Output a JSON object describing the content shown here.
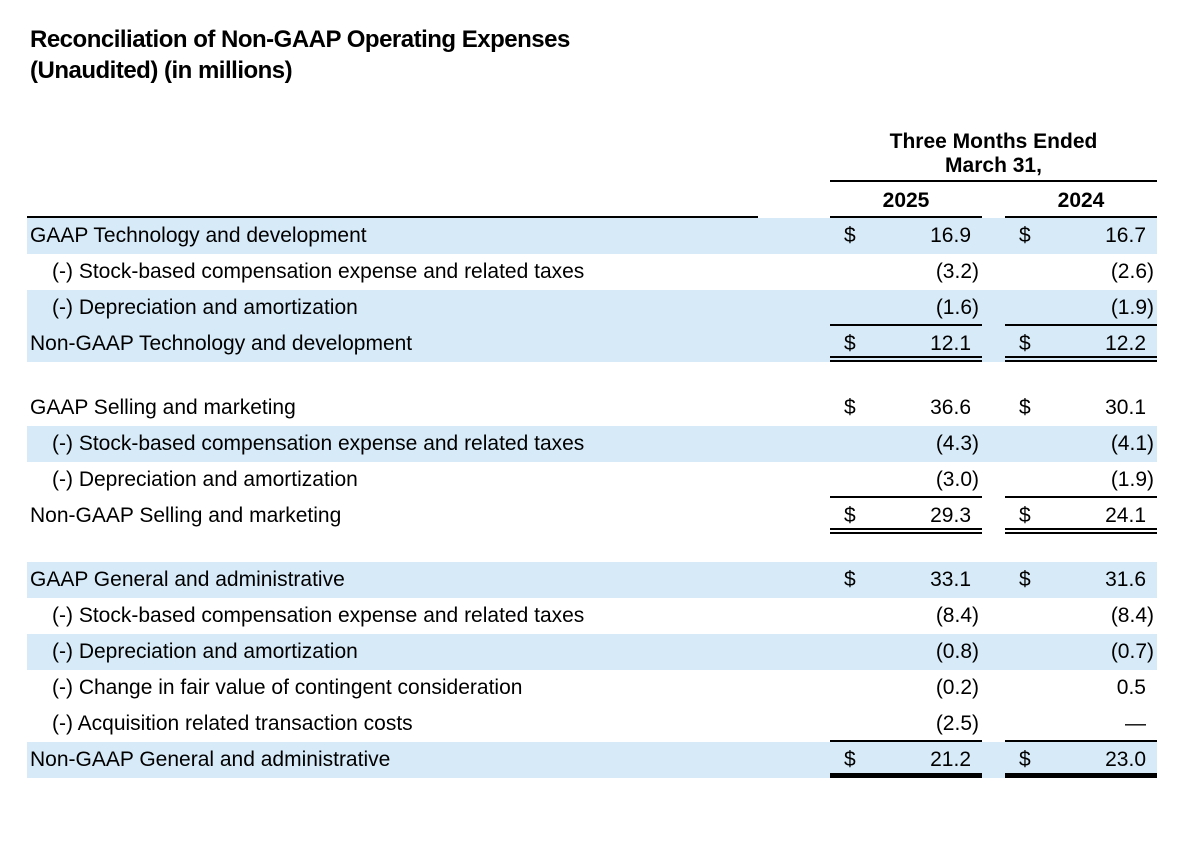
{
  "page": {
    "title_line1": "Reconciliation of Non-GAAP Operating Expenses",
    "title_line2": "(Unaudited) (in millions)"
  },
  "table": {
    "period_line1": "Three Months Ended",
    "period_line2": "March 31,",
    "col_2025": "2025",
    "col_2024": "2024",
    "currency_symbol": "$",
    "highlight_color": "#d7eaf8",
    "rule_color": "#000000",
    "sections": [
      {
        "name": "technology-and-development",
        "bottom_rule": "double",
        "rows": [
          {
            "label": "GAAP Technology and development",
            "indent": false,
            "dollar": true,
            "values": [
              "16.9",
              "16.7"
            ],
            "highlight": true,
            "role": "gaap"
          },
          {
            "label": "(-) Stock-based compensation expense and related taxes",
            "indent": true,
            "dollar": false,
            "values": [
              "(3.2)",
              "(2.6)"
            ],
            "highlight": false,
            "role": "adjustment"
          },
          {
            "label": "(-) Depreciation and amortization",
            "indent": true,
            "dollar": false,
            "values": [
              "(1.6)",
              "(1.9)"
            ],
            "highlight": true,
            "role": "adjustment",
            "rule_below": true
          },
          {
            "label": "Non-GAAP Technology and development",
            "indent": false,
            "dollar": true,
            "values": [
              "12.1",
              "12.2"
            ],
            "highlight": true,
            "role": "total"
          }
        ]
      },
      {
        "name": "selling-and-marketing",
        "bottom_rule": "double",
        "rows": [
          {
            "label": "GAAP Selling and marketing",
            "indent": false,
            "dollar": true,
            "values": [
              "36.6",
              "30.1"
            ],
            "highlight": false,
            "role": "gaap"
          },
          {
            "label": "(-) Stock-based compensation expense and related taxes",
            "indent": true,
            "dollar": false,
            "values": [
              "(4.3)",
              "(4.1)"
            ],
            "highlight": true,
            "role": "adjustment"
          },
          {
            "label": "(-) Depreciation and amortization",
            "indent": true,
            "dollar": false,
            "values": [
              "(3.0)",
              "(1.9)"
            ],
            "highlight": false,
            "role": "adjustment",
            "rule_below": true
          },
          {
            "label": "Non-GAAP Selling and marketing",
            "indent": false,
            "dollar": true,
            "values": [
              "29.3",
              "24.1"
            ],
            "highlight": false,
            "role": "total"
          }
        ]
      },
      {
        "name": "general-and-administrative",
        "bottom_rule": "thick",
        "rows": [
          {
            "label": "GAAP General and administrative",
            "indent": false,
            "dollar": true,
            "values": [
              "33.1",
              "31.6"
            ],
            "highlight": true,
            "role": "gaap"
          },
          {
            "label": "(-) Stock-based compensation expense and related taxes",
            "indent": true,
            "dollar": false,
            "values": [
              "(8.4)",
              "(8.4)"
            ],
            "highlight": false,
            "role": "adjustment"
          },
          {
            "label": "(-) Depreciation and amortization",
            "indent": true,
            "dollar": false,
            "values": [
              "(0.8)",
              "(0.7)"
            ],
            "highlight": true,
            "role": "adjustment"
          },
          {
            "label": "(-) Change in fair value of contingent consideration",
            "indent": true,
            "dollar": false,
            "values": [
              "(0.2)",
              "0.5"
            ],
            "highlight": false,
            "role": "adjustment"
          },
          {
            "label": "(-) Acquisition related transaction costs",
            "indent": true,
            "dollar": false,
            "values": [
              "(2.5)",
              "—"
            ],
            "highlight": false,
            "role": "adjustment",
            "rule_below": true
          },
          {
            "label": "Non-GAAP General and administrative",
            "indent": false,
            "dollar": true,
            "values": [
              "21.2",
              "23.0"
            ],
            "highlight": true,
            "role": "total"
          }
        ]
      }
    ]
  }
}
